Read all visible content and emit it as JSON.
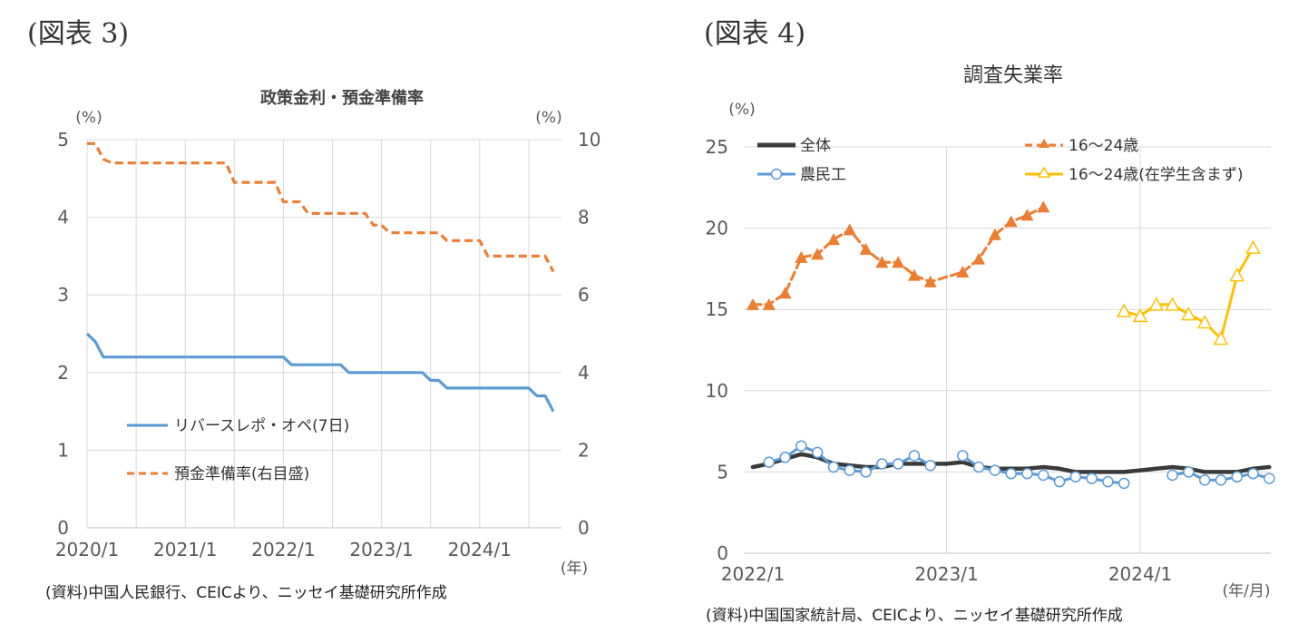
{
  "fig3": {
    "label": "(図表 3)",
    "source": "(資料)中国人民銀行、CEICより、ニッセイ基礎研究所作成"
  },
  "fig4": {
    "label": "(図表 4)",
    "source": "(資料)中国国家統計局、CEICより、ニッセイ基礎研究所作成"
  },
  "chart_data": [
    {
      "type": "line",
      "title": "政策金利・預金準備率",
      "left_unit": "(%)",
      "right_unit": "(%)",
      "x_unit": "(年)",
      "xlim": [
        0,
        58
      ],
      "x_ticks": [
        {
          "x": 0,
          "label": "2020/1"
        },
        {
          "x": 12,
          "label": "2021/1"
        },
        {
          "x": 24,
          "label": "2022/1"
        },
        {
          "x": 36,
          "label": "2023/1"
        },
        {
          "x": 48,
          "label": "2024/1"
        }
      ],
      "ylim_left": [
        0,
        5
      ],
      "ylim_right": [
        0,
        10
      ],
      "y_ticks_left": [
        "0",
        "1",
        "2",
        "3",
        "4",
        "5"
      ],
      "y_ticks_right": [
        "0",
        "2",
        "4",
        "6",
        "8",
        "10"
      ],
      "grid": true,
      "series": [
        {
          "name": "リバースレポ・オペ(7日)",
          "axis": "left",
          "color": "#5b9bd5",
          "dash": false,
          "points": [
            [
              0,
              2.5
            ],
            [
              1,
              2.4
            ],
            [
              2,
              2.2
            ],
            [
              24,
              2.2
            ],
            [
              25,
              2.1
            ],
            [
              31,
              2.1
            ],
            [
              32,
              2.0
            ],
            [
              41,
              2.0
            ],
            [
              42,
              1.9
            ],
            [
              43,
              1.9
            ],
            [
              44,
              1.8
            ],
            [
              54,
              1.8
            ],
            [
              55,
              1.7
            ],
            [
              56,
              1.7
            ],
            [
              57,
              1.5
            ]
          ]
        },
        {
          "name": "預金準備率(右目盛)",
          "axis": "right",
          "color": "#ed7d31",
          "dash": true,
          "points": [
            [
              0,
              9.9
            ],
            [
              1,
              9.9
            ],
            [
              2,
              9.5
            ],
            [
              3,
              9.4
            ],
            [
              17,
              9.4
            ],
            [
              18,
              8.9
            ],
            [
              23,
              8.9
            ],
            [
              24,
              8.4
            ],
            [
              26,
              8.4
            ],
            [
              27,
              8.1
            ],
            [
              34,
              8.1
            ],
            [
              35,
              7.8
            ],
            [
              36,
              7.8
            ],
            [
              37,
              7.6
            ],
            [
              43,
              7.6
            ],
            [
              44,
              7.4
            ],
            [
              48,
              7.4
            ],
            [
              49,
              7.0
            ],
            [
              56,
              7.0
            ],
            [
              57,
              6.6
            ]
          ]
        }
      ]
    },
    {
      "type": "line",
      "title": "調査失業率",
      "y_unit": "(%)",
      "x_unit": "(年/月)",
      "xlim": [
        0,
        31
      ],
      "x_ticks": [
        {
          "x": 0,
          "label": "2022/1"
        },
        {
          "x": 12,
          "label": "2023/1"
        },
        {
          "x": 24,
          "label": "2024/1"
        }
      ],
      "ylim": [
        0,
        25
      ],
      "y_ticks": [
        "0",
        "5",
        "10",
        "15",
        "20",
        "25"
      ],
      "grid": true,
      "series": [
        {
          "name": "全体",
          "color": "#3a3a3a",
          "dash": false,
          "marker": "none",
          "points": [
            [
              0,
              5.3
            ],
            [
              1,
              5.5
            ],
            [
              2,
              5.8
            ],
            [
              3,
              6.1
            ],
            [
              4,
              5.9
            ],
            [
              5,
              5.5
            ],
            [
              6,
              5.4
            ],
            [
              7,
              5.3
            ],
            [
              8,
              5.3
            ],
            [
              9,
              5.5
            ],
            [
              10,
              5.5
            ],
            [
              11,
              5.5
            ],
            [
              12,
              5.5
            ],
            [
              13,
              5.6
            ],
            [
              14,
              5.3
            ],
            [
              15,
              5.2
            ],
            [
              16,
              5.2
            ],
            [
              17,
              5.2
            ],
            [
              18,
              5.3
            ],
            [
              19,
              5.2
            ],
            [
              20,
              5.0
            ],
            [
              21,
              5.0
            ],
            [
              22,
              5.0
            ],
            [
              23,
              5.0
            ],
            [
              24,
              5.1
            ],
            [
              25,
              5.2
            ],
            [
              26,
              5.3
            ],
            [
              27,
              5.2
            ],
            [
              28,
              5.0
            ],
            [
              29,
              5.0
            ],
            [
              30,
              5.0
            ],
            [
              31,
              5.2
            ],
            [
              32,
              5.3
            ]
          ]
        },
        {
          "name": "16～24歳",
          "color": "#ed7d31",
          "dash": true,
          "marker": "triangle-filled",
          "points": [
            [
              0,
              15.3
            ],
            [
              1,
              15.3
            ],
            [
              2,
              16.0
            ],
            [
              3,
              18.2
            ],
            [
              4,
              18.4
            ],
            [
              5,
              19.3
            ],
            [
              6,
              19.9
            ],
            [
              7,
              18.7
            ],
            [
              8,
              17.9
            ],
            [
              9,
              17.9
            ],
            [
              10,
              17.1
            ],
            [
              11,
              16.7
            ],
            [
              13,
              17.3
            ],
            [
              14,
              18.1
            ],
            [
              15,
              19.6
            ],
            [
              16,
              20.4
            ],
            [
              17,
              20.8
            ],
            [
              18,
              21.3
            ]
          ]
        },
        {
          "name": "農民工",
          "color": "#5b9bd5",
          "dash": false,
          "marker": "circle-open",
          "segments": [
            [
              [
                1,
                5.6
              ],
              [
                2,
                5.9
              ],
              [
                3,
                6.6
              ],
              [
                4,
                6.2
              ],
              [
                5,
                5.3
              ],
              [
                6,
                5.1
              ],
              [
                7,
                5.0
              ],
              [
                8,
                5.5
              ],
              [
                9,
                5.5
              ],
              [
                10,
                6.0
              ],
              [
                11,
                5.4
              ]
            ],
            [
              [
                13,
                6.0
              ],
              [
                14,
                5.3
              ],
              [
                15,
                5.1
              ],
              [
                16,
                4.9
              ],
              [
                17,
                4.9
              ],
              [
                18,
                4.8
              ],
              [
                19,
                4.4
              ],
              [
                20,
                4.7
              ],
              [
                21,
                4.6
              ],
              [
                22,
                4.4
              ],
              [
                23,
                4.3
              ]
            ],
            [
              [
                26,
                4.8
              ],
              [
                27,
                5.0
              ],
              [
                28,
                4.5
              ],
              [
                29,
                4.5
              ],
              [
                30,
                4.7
              ],
              [
                31,
                4.9
              ],
              [
                32,
                4.6
              ]
            ]
          ]
        },
        {
          "name": "16～24歳(在学生含まず)",
          "color": "#ffc000",
          "dash": false,
          "marker": "triangle-open",
          "points": [
            [
              23,
              14.9
            ],
            [
              24,
              14.6
            ],
            [
              25,
              15.3
            ],
            [
              26,
              15.3
            ],
            [
              27,
              14.7
            ],
            [
              28,
              14.2
            ],
            [
              29,
              13.2
            ],
            [
              30,
              17.1
            ],
            [
              31,
              18.8
            ]
          ]
        }
      ]
    }
  ]
}
